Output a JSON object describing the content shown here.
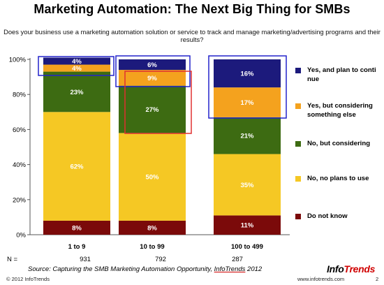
{
  "title": "Marketing Automation: The Next Big Thing for SMBs",
  "subtitle": "Does your business use a marketing automation solution or service to track and manage marketing/advertising programs and their results?",
  "chart_data": {
    "type": "bar",
    "stacked": true,
    "categories": [
      "1 to 9",
      "10 to 99",
      "100 to 499"
    ],
    "series": [
      {
        "name": "Do not know",
        "color": "#7b0a0a",
        "values": [
          8,
          8,
          11
        ],
        "labels": [
          "8%",
          "8%",
          "11%"
        ]
      },
      {
        "name": "No, no plans to use",
        "color": "#f5c824",
        "values": [
          62,
          50,
          35
        ],
        "labels": [
          "62%",
          "50%",
          "35%"
        ]
      },
      {
        "name": "No, but considering",
        "color": "#3d6b12",
        "values": [
          23,
          27,
          21
        ],
        "labels": [
          "23%",
          "27%",
          "21%"
        ]
      },
      {
        "name": "Yes, but considering something else",
        "color": "#f4a21e",
        "values": [
          4,
          9,
          17
        ],
        "labels": [
          "4%",
          "9%",
          "17%"
        ]
      },
      {
        "name": "Yes, and plan to conti nue",
        "color": "#1c1a7c",
        "values": [
          4,
          6,
          16
        ],
        "labels": [
          "4%",
          "6%",
          "16%"
        ]
      }
    ],
    "yticks": [
      "0%",
      "20%",
      "40%",
      "60%",
      "80%",
      "100%"
    ],
    "ylim": [
      0,
      100
    ],
    "legend_position": "right"
  },
  "legend": [
    {
      "label": "Yes, and plan to conti nue",
      "color": "#1c1a7c"
    },
    {
      "label": "Yes, but considering something else",
      "color": "#f4a21e"
    },
    {
      "label": "No, but considering",
      "color": "#3d6b12"
    },
    {
      "label": "No, no plans to use",
      "color": "#f5c824"
    },
    {
      "label": "Do not know",
      "color": "#7b0a0a"
    }
  ],
  "n_label": "N =",
  "n_values": [
    "931",
    "792",
    "287"
  ],
  "source_prefix": "Source: Capturing the SMB Marketing Automation Opportunity, ",
  "source_brand": "InfoTrends",
  "source_year": " 2012",
  "footer_left": "© 2012 InfoTrends",
  "footer_right": "www.infotrends.com",
  "page_number": "2",
  "logo": {
    "part1": "Info",
    "part2": "T",
    "part3": "rends"
  }
}
